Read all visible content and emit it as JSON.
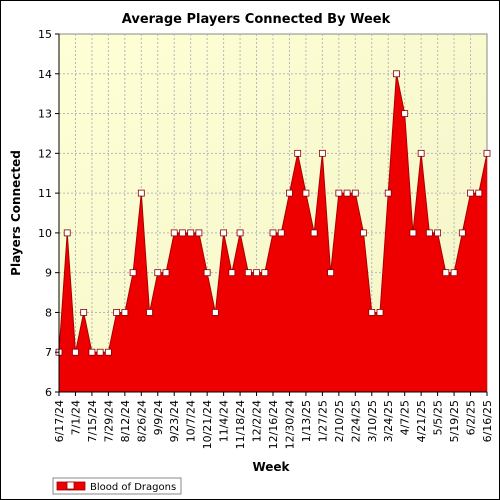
{
  "chart_data": {
    "type": "area",
    "title": "Average Players Connected By Week",
    "xlabel": "Week",
    "ylabel": "Players Connected",
    "ylim": [
      6,
      15
    ],
    "yticks": [
      6,
      7,
      8,
      9,
      10,
      11,
      12,
      13,
      14,
      15
    ],
    "grid": true,
    "legend_position": "bottom-left",
    "x_tick_labels": [
      "6/17/24",
      "7/1/24",
      "7/15/24",
      "7/29/24",
      "8/12/24",
      "8/26/24",
      "9/9/24",
      "9/23/24",
      "10/7/24",
      "10/21/24",
      "11/4/24",
      "11/18/24",
      "12/2/24",
      "12/16/24",
      "12/30/24",
      "1/13/25",
      "1/27/25",
      "2/10/25",
      "2/24/25",
      "3/10/25",
      "3/24/25",
      "4/7/25",
      "4/21/25",
      "5/5/25",
      "5/19/25",
      "6/2/25",
      "6/16/25"
    ],
    "series": [
      {
        "name": "Blood of Dragons",
        "color": "#ee0000",
        "values": [
          7,
          10,
          7,
          8,
          7,
          7,
          7,
          8,
          8,
          9,
          11,
          8,
          9,
          9,
          10,
          10,
          10,
          10,
          9,
          8,
          10,
          9,
          10,
          9,
          9,
          9,
          10,
          10,
          11,
          12,
          11,
          10,
          12,
          9,
          11,
          11,
          11,
          10,
          8,
          8,
          11,
          14,
          13,
          10,
          12,
          10,
          10,
          9,
          9,
          10,
          11,
          11,
          12
        ]
      }
    ]
  }
}
